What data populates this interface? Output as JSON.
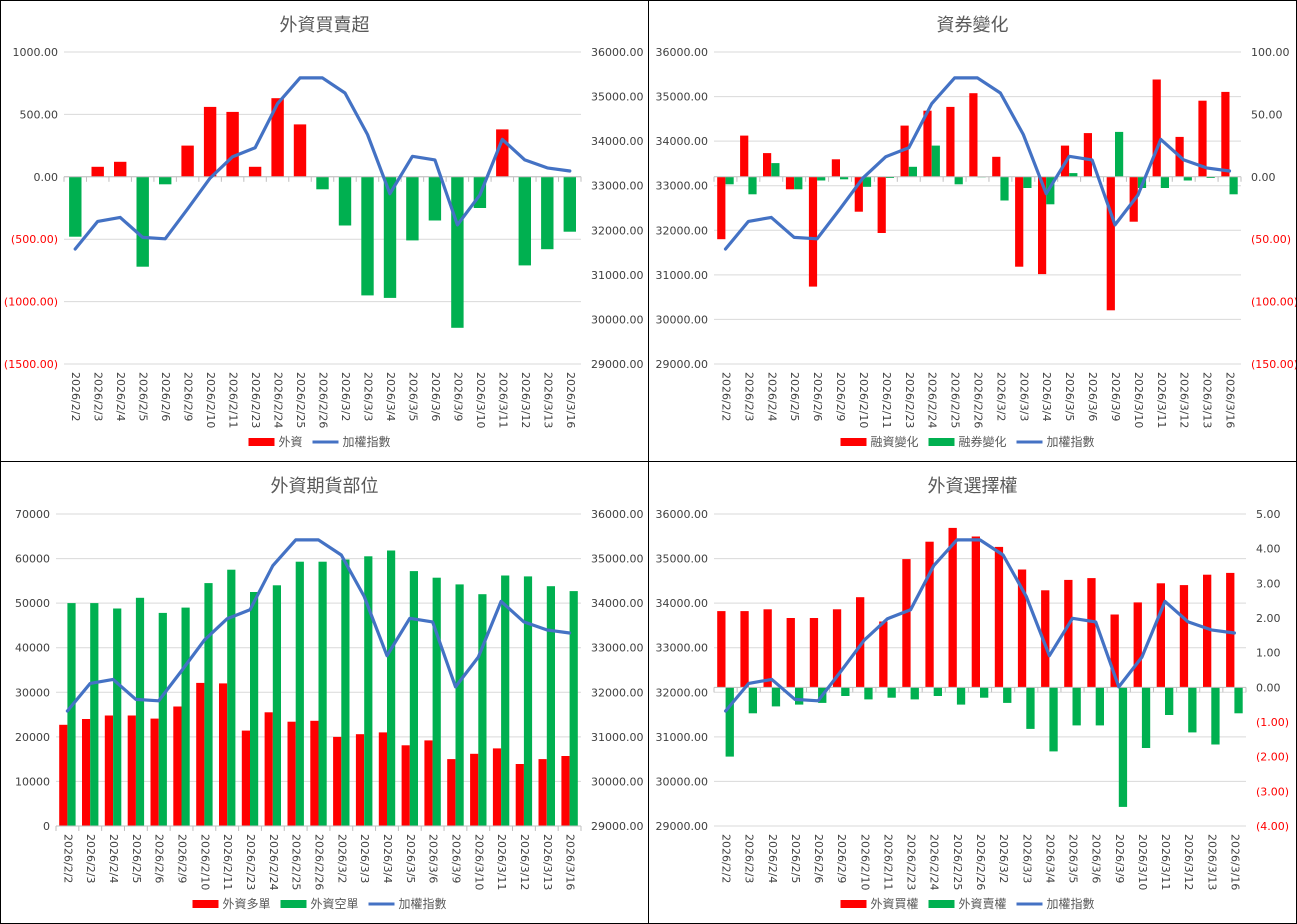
{
  "colors": {
    "red": "#ff0000",
    "green": "#00b050",
    "blue": "#4472c4",
    "grid": "#d9d9d9"
  },
  "dates": [
    "2026/2/2",
    "2026/2/3",
    "2026/2/4",
    "2026/2/5",
    "2026/2/6",
    "2026/2/9",
    "2026/2/10",
    "2026/2/11",
    "2026/2/23",
    "2026/2/24",
    "2026/2/25",
    "2026/2/26",
    "2026/3/2",
    "2026/3/3",
    "2026/3/4",
    "2026/3/5",
    "2026/3/6",
    "2026/3/9",
    "2026/3/10",
    "2026/3/11",
    "2026/3/12",
    "2026/3/13",
    "2026/3/16"
  ],
  "index_series": [
    31580,
    32200,
    32290,
    31840,
    31810,
    32480,
    33170,
    33650,
    33850,
    34840,
    35420,
    35420,
    35080,
    34150,
    32820,
    33660,
    33580,
    32120,
    32790,
    34040,
    33580,
    33400,
    33330
  ],
  "chart_data": [
    {
      "type": "bar",
      "title": "外資買賣超",
      "categories_ref": "dates",
      "series": [
        {
          "name": "外資",
          "kind": "bar",
          "axis": "left",
          "color_pos": "#ff0000",
          "color_neg": "#00b050",
          "values": [
            -480,
            80,
            120,
            -720,
            -60,
            250,
            560,
            520,
            80,
            630,
            420,
            -100,
            -390,
            -950,
            -970,
            -510,
            -350,
            -1210,
            -250,
            380,
            -710,
            -580,
            -440
          ]
        },
        {
          "name": "加權指數",
          "kind": "line",
          "axis": "right",
          "ref": "index_series"
        }
      ],
      "left_axis": {
        "min": -1500,
        "max": 1000,
        "step": 500,
        "ticks": [
          "(1500.00)",
          "(1000.00)",
          "(500.00)",
          "0.00",
          "500.00",
          "1000.00"
        ]
      },
      "right_axis": {
        "min": 29000,
        "max": 36000,
        "step": 1000,
        "ticks": [
          "29000.00",
          "30000.00",
          "31000.00",
          "32000.00",
          "33000.00",
          "34000.00",
          "35000.00",
          "36000.00"
        ]
      },
      "legend": [
        "外資",
        "加權指數"
      ],
      "legend_position": "bottom"
    },
    {
      "type": "bar",
      "title": "資券變化",
      "categories_ref": "dates",
      "series": [
        {
          "name": "融資變化",
          "kind": "bar",
          "axis": "right",
          "color": "#ff0000",
          "values": [
            -50,
            33,
            19,
            -10,
            -88,
            14,
            -28,
            -45,
            41,
            53,
            56,
            67,
            16,
            -72,
            -78,
            25,
            35,
            -107,
            -36,
            78,
            32,
            61,
            68
          ]
        },
        {
          "name": "融券變化",
          "kind": "bar",
          "axis": "right",
          "color": "#00b050",
          "values": [
            -6,
            -14,
            11,
            -10,
            -3,
            -2,
            -8,
            -1,
            8,
            25,
            -6,
            0,
            -19,
            -9,
            -22,
            3,
            0,
            36,
            -9,
            -9,
            -3,
            -1,
            -14
          ]
        },
        {
          "name": "加權指數",
          "kind": "line",
          "axis": "left",
          "ref": "index_series"
        }
      ],
      "left_axis": {
        "min": 29000,
        "max": 36000,
        "step": 1000,
        "ticks": [
          "29000.00",
          "30000.00",
          "31000.00",
          "32000.00",
          "33000.00",
          "34000.00",
          "35000.00",
          "36000.00"
        ]
      },
      "right_axis": {
        "min": -150,
        "max": 100,
        "step": 50,
        "ticks": [
          "(150.00)",
          "(100.00)",
          "(50.00)",
          "0.00",
          "50.00",
          "100.00"
        ]
      },
      "legend": [
        "融資變化",
        "融券變化",
        "加權指數"
      ],
      "legend_position": "bottom"
    },
    {
      "type": "bar",
      "title": "外資期貨部位",
      "categories_ref": "dates",
      "series": [
        {
          "name": "外資多單",
          "kind": "bar",
          "axis": "left",
          "color": "#ff0000",
          "values": [
            22700,
            24000,
            24800,
            24800,
            24100,
            26800,
            32100,
            32000,
            21400,
            25500,
            23400,
            23600,
            20000,
            20600,
            21000,
            18100,
            19200,
            15000,
            16200,
            17400,
            13900,
            15000,
            15700
          ]
        },
        {
          "name": "外資空單",
          "kind": "bar",
          "axis": "left",
          "color": "#00b050",
          "values": [
            50000,
            50000,
            48800,
            51200,
            47800,
            49000,
            54500,
            57500,
            52500,
            54000,
            59300,
            59300,
            59800,
            60500,
            61800,
            57200,
            55700,
            54200,
            52000,
            56200,
            56000,
            53800,
            52700
          ]
        },
        {
          "name": "加權指數",
          "kind": "line",
          "axis": "right",
          "ref": "index_series"
        }
      ],
      "left_axis": {
        "min": 0,
        "max": 70000,
        "step": 10000,
        "ticks": [
          "0",
          "10000",
          "20000",
          "30000",
          "40000",
          "50000",
          "60000",
          "70000"
        ]
      },
      "right_axis": {
        "min": 29000,
        "max": 36000,
        "step": 1000,
        "ticks": [
          "29000.00",
          "30000.00",
          "31000.00",
          "32000.00",
          "33000.00",
          "34000.00",
          "35000.00",
          "36000.00"
        ]
      },
      "legend": [
        "外資多單",
        "外資空單",
        "加權指數"
      ],
      "legend_position": "bottom"
    },
    {
      "type": "bar",
      "title": "外資選擇權",
      "categories_ref": "dates",
      "series": [
        {
          "name": "外資買權",
          "kind": "bar",
          "axis": "right",
          "color": "#ff0000",
          "values": [
            2.2,
            2.2,
            2.25,
            2.0,
            2.0,
            2.25,
            2.6,
            1.9,
            3.7,
            4.2,
            4.6,
            4.35,
            4.05,
            3.4,
            2.8,
            3.1,
            3.15,
            2.1,
            2.45,
            3.0,
            2.95,
            3.25,
            3.3
          ]
        },
        {
          "name": "外資賣權",
          "kind": "bar",
          "axis": "right",
          "color": "#00b050",
          "values": [
            -2.0,
            -0.75,
            -0.55,
            -0.5,
            -0.45,
            -0.25,
            -0.35,
            -0.3,
            -0.35,
            -0.25,
            -0.5,
            -0.3,
            -0.45,
            -1.2,
            -1.85,
            -1.1,
            -1.1,
            -3.45,
            -1.75,
            -0.8,
            -1.3,
            -1.65,
            -0.75
          ]
        },
        {
          "name": "加權指數",
          "kind": "line",
          "axis": "left",
          "ref": "index_series"
        }
      ],
      "left_axis": {
        "min": 29000,
        "max": 36000,
        "step": 1000,
        "ticks": [
          "29000.00",
          "30000.00",
          "31000.00",
          "32000.00",
          "33000.00",
          "34000.00",
          "35000.00",
          "36000.00"
        ]
      },
      "right_axis": {
        "min": -4,
        "max": 5,
        "step": 1,
        "ticks": [
          "(4.00)",
          "(3.00)",
          "(2.00)",
          "(1.00)",
          "0.00",
          "1.00",
          "2.00",
          "3.00",
          "4.00",
          "5.00"
        ]
      },
      "legend": [
        "外資買權",
        "外資賣權",
        "加權指數"
      ],
      "legend_position": "bottom"
    }
  ]
}
